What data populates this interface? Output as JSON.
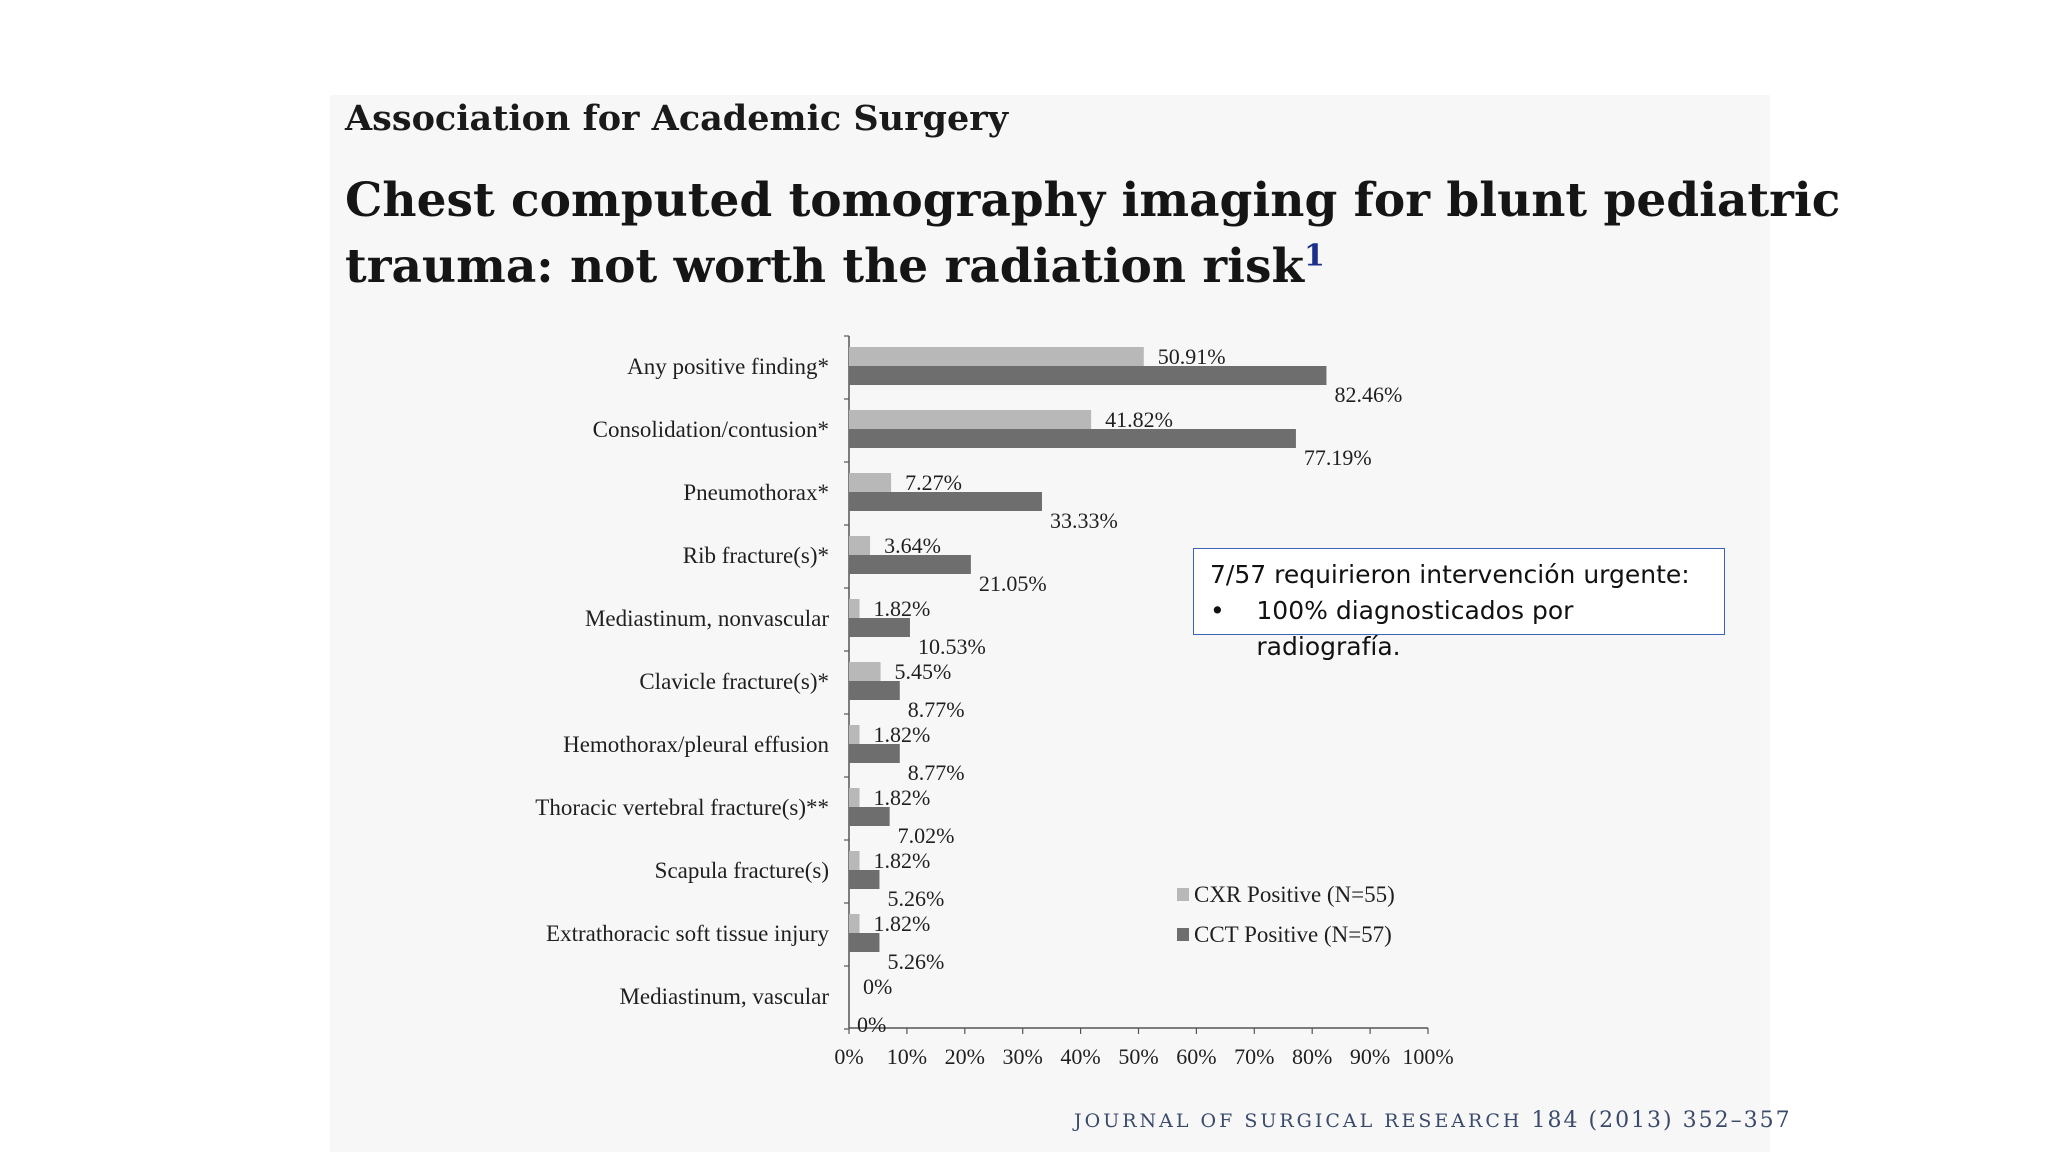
{
  "header": {
    "association": "Association for Academic Surgery",
    "title_line1": "Chest computed tomography imaging for blunt pediatric",
    "title_line2": "trauma: not worth the radiation risk",
    "footnote_marker": "1"
  },
  "callout": {
    "line1": "7/57 requirieron intervención urgente:",
    "bullet": "•",
    "line2": "100% diagnosticados por radiografía."
  },
  "journal": {
    "name": "JOURNAL OF SURGICAL RESEARCH",
    "citation": "184 (2013) 352–357"
  },
  "colors": {
    "cxr": "#b8b8b8",
    "cct": "#6e6e6e",
    "axis": "#555555",
    "callout_border": "#3b63b8"
  },
  "chart_data": {
    "type": "bar",
    "orientation": "horizontal",
    "categories": [
      "Any positive finding*",
      "Consolidation/contusion*",
      "Pneumothorax*",
      "Rib fracture(s)*",
      "Mediastinum, nonvascular",
      "Clavicle fracture(s)*",
      "Hemothorax/pleural effusion",
      "Thoracic vertebral fracture(s)**",
      "Scapula fracture(s)",
      "Extrathoracic soft tissue injury",
      "Mediastinum, vascular"
    ],
    "series": [
      {
        "name": "CXR Positive (N=55)",
        "values": [
          50.91,
          41.82,
          7.27,
          3.64,
          1.82,
          5.45,
          1.82,
          1.82,
          1.82,
          1.82,
          0
        ],
        "labels": [
          "50.91%",
          "41.82%",
          "7.27%",
          "3.64%",
          "1.82%",
          "5.45%",
          "1.82%",
          "1.82%",
          "1.82%",
          "1.82%",
          "0%"
        ]
      },
      {
        "name": "CCT Positive (N=57)",
        "values": [
          82.46,
          77.19,
          33.33,
          21.05,
          10.53,
          8.77,
          8.77,
          7.02,
          5.26,
          5.26,
          0
        ],
        "labels": [
          "82.46%",
          "77.19%",
          "33.33%",
          "21.05%",
          "10.53%",
          "8.77%",
          "8.77%",
          "7.02%",
          "5.26%",
          "5.26%",
          "0%"
        ]
      }
    ],
    "xlim": [
      0,
      100
    ],
    "xticks": [
      "0%",
      "10%",
      "20%",
      "30%",
      "40%",
      "50%",
      "60%",
      "70%",
      "80%",
      "90%",
      "100%"
    ],
    "legend_position": "bottom-right",
    "grid": false
  }
}
